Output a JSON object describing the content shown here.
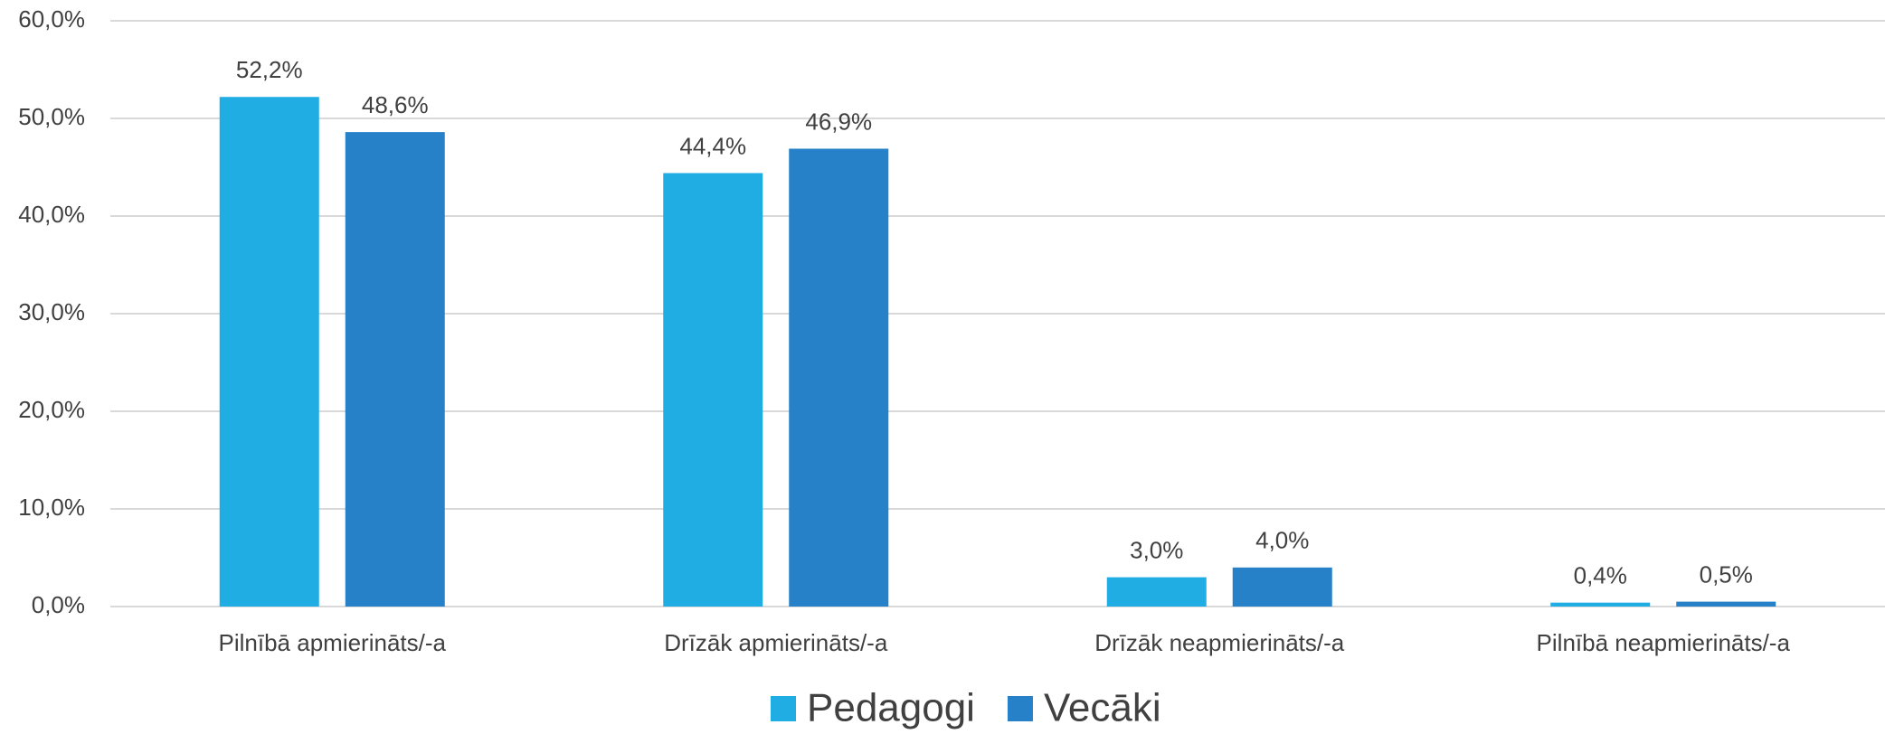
{
  "chart_data": {
    "type": "bar",
    "categories": [
      "Pilnībā apmierināts/-a",
      "Drīzāk apmierināts/-a",
      "Drīzāk neapmierināts/-a",
      "Pilnībā neapmierināts/-a"
    ],
    "series": [
      {
        "name": "Pedagogi",
        "color": "#1fade4",
        "values": [
          52.2,
          44.4,
          3.0,
          0.4
        ],
        "value_labels": [
          "52,2%",
          "44,4%",
          "3,0%",
          "0,4%"
        ]
      },
      {
        "name": "Vecāki",
        "color": "#2681c8",
        "values": [
          48.6,
          46.9,
          4.0,
          0.5
        ],
        "value_labels": [
          "48,6%",
          "46,9%",
          "4,0%",
          "0,5%"
        ]
      }
    ],
    "ylim": [
      0,
      60
    ],
    "yticks": [
      {
        "value": 0,
        "label": "0,0%"
      },
      {
        "value": 10,
        "label": "10,0%"
      },
      {
        "value": 20,
        "label": "20,0%"
      },
      {
        "value": 30,
        "label": "30,0%"
      },
      {
        "value": 40,
        "label": "40,0%"
      },
      {
        "value": 50,
        "label": "50,0%"
      },
      {
        "value": 60,
        "label": "60,0%"
      }
    ],
    "grid": true,
    "legend": "bottom"
  }
}
